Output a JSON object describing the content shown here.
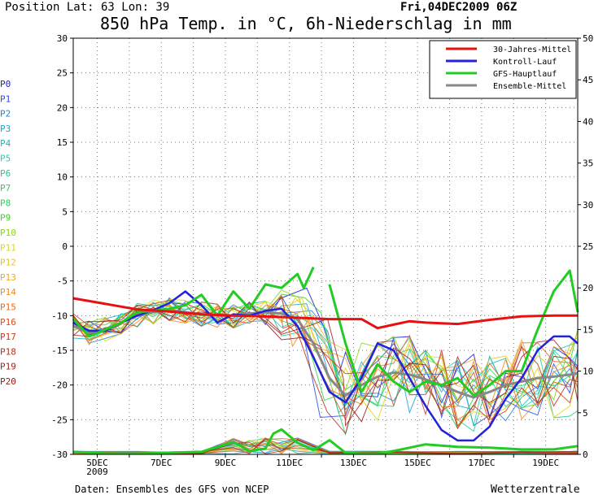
{
  "header": {
    "position": "Position   Lat: 63 Lon: 39",
    "title": "850 hPa Temp. in °C, 6h-Niederschlag in mm",
    "date": "Fri,04DEC2009 06Z"
  },
  "footer": {
    "source": "Daten: Ensembles des GFS von NCEP",
    "brand": "Wetterzentrale"
  },
  "members": [
    {
      "label": "P0",
      "color": "#1a1ae6"
    },
    {
      "label": "P1",
      "color": "#2650e6"
    },
    {
      "label": "P2",
      "color": "#1e7fe0"
    },
    {
      "label": "P3",
      "color": "#19a3d6"
    },
    {
      "label": "P4",
      "color": "#16b8c4"
    },
    {
      "label": "P5",
      "color": "#1ecfb5"
    },
    {
      "label": "P6",
      "color": "#20c995"
    },
    {
      "label": "P7",
      "color": "#1ed36d"
    },
    {
      "label": "P8",
      "color": "#22d64a"
    },
    {
      "label": "P9",
      "color": "#39d61e"
    },
    {
      "label": "P10",
      "color": "#8ad61c"
    },
    {
      "label": "P11",
      "color": "#d9d91a"
    },
    {
      "label": "P12",
      "color": "#eac41a"
    },
    {
      "label": "P13",
      "color": "#f0aa1a"
    },
    {
      "label": "P14",
      "color": "#f08a1a"
    },
    {
      "label": "P15",
      "color": "#e86d1c"
    },
    {
      "label": "P16",
      "color": "#d9501e"
    },
    {
      "label": "P17",
      "color": "#c8401e"
    },
    {
      "label": "P18",
      "color": "#b83020"
    },
    {
      "label": "P19",
      "color": "#a82222"
    },
    {
      "label": "P20",
      "color": "#981818"
    }
  ],
  "chart_data": {
    "type": "line",
    "title": "850 hPa Temp. in °C, 6h-Niederschlag in mm",
    "x_unit": "days from 04DEC2009 06Z",
    "xlim": [
      0,
      15.75
    ],
    "x_ticks": [
      {
        "x": 0.75,
        "label": "5DEC",
        "sub": "2009"
      },
      {
        "x": 2.75,
        "label": "7DEC"
      },
      {
        "x": 4.75,
        "label": "9DEC"
      },
      {
        "x": 6.75,
        "label": "11DEC"
      },
      {
        "x": 8.75,
        "label": "13DEC"
      },
      {
        "x": 10.75,
        "label": "15DEC"
      },
      {
        "x": 12.75,
        "label": "17DEC"
      },
      {
        "x": 14.75,
        "label": "19DEC"
      }
    ],
    "y_left": {
      "label": "850 hPa Temp. in °C",
      "ylim": [
        -30,
        30
      ],
      "ticks": [
        30,
        25,
        20,
        15,
        10,
        5,
        0,
        -5,
        -10,
        -15,
        -20,
        -25,
        -30
      ]
    },
    "y_right": {
      "label": "6h-Niederschlag in mm",
      "ylim": [
        0,
        50
      ],
      "ticks": [
        50,
        45,
        40,
        35,
        30,
        25,
        20,
        15,
        10,
        5,
        0
      ]
    },
    "grid": true,
    "legend_position": "top-right",
    "legend": [
      {
        "name": "30-Jahres-Mittel",
        "color": "#e81010"
      },
      {
        "name": "Kontroll-Lauf",
        "color": "#2222dd"
      },
      {
        "name": "GFS-Hauptlauf",
        "color": "#22cc22"
      },
      {
        "name": "Ensemble-Mittel",
        "color": "#888888"
      }
    ],
    "series": [
      {
        "name": "30-Jahres-Mittel",
        "color": "#e81010",
        "axis": "left",
        "width": 3,
        "x": [
          0,
          1,
          2,
          3,
          4,
          5,
          6,
          7,
          8,
          9,
          9.5,
          10,
          10.5,
          11,
          12,
          13,
          14,
          15,
          15.75
        ],
        "y": [
          -7.5,
          -8.3,
          -9.1,
          -9.4,
          -9.8,
          -10,
          -10.1,
          -10.3,
          -10.5,
          -10.5,
          -11.8,
          -11.3,
          -10.8,
          -11,
          -11.2,
          -10.6,
          -10.1,
          -10,
          -10
        ]
      },
      {
        "name": "Kontroll-Lauf",
        "color": "#2222dd",
        "axis": "left",
        "width": 2.5,
        "x": [
          0,
          0.5,
          1,
          1.5,
          2,
          2.5,
          3,
          3.5,
          4,
          4.5,
          5,
          5.5,
          6,
          6.5,
          7,
          7.5,
          8,
          8.5,
          9,
          9.5,
          10,
          10.5,
          11,
          11.5,
          12,
          12.5,
          13,
          13.5,
          14,
          14.5,
          15,
          15.5,
          15.75
        ],
        "y": [
          -11,
          -12.2,
          -12.2,
          -11,
          -10,
          -9.2,
          -8.2,
          -6.5,
          -8.5,
          -11,
          -9.8,
          -10,
          -9.3,
          -9,
          -11.5,
          -16,
          -21,
          -22.5,
          -19,
          -14,
          -15,
          -19,
          -23,
          -26.5,
          -28,
          -28,
          -26,
          -22,
          -19,
          -15,
          -13,
          -13,
          -14
        ]
      },
      {
        "name": "Ensemble-Mittel",
        "color": "#888888",
        "axis": "left",
        "width": 3,
        "x": [
          0,
          0.5,
          1,
          1.5,
          2,
          2.5,
          3,
          3.5,
          4,
          4.5,
          5,
          5.5,
          6,
          6.5,
          7,
          7.5,
          8,
          8.5,
          9,
          9.5,
          10,
          10.5,
          11,
          11.5,
          12,
          12.5,
          13,
          13.5,
          14,
          14.5,
          15,
          15.5,
          15.75
        ],
        "y": [
          -11.5,
          -12.5,
          -12,
          -11,
          -10,
          -9.5,
          -9.2,
          -9.5,
          -9.8,
          -10,
          -10,
          -9.7,
          -9.5,
          -9.7,
          -10.5,
          -14,
          -19,
          -21.5,
          -20,
          -18.8,
          -18.2,
          -18.5,
          -19.2,
          -20,
          -21,
          -21.8,
          -21,
          -20,
          -19.5,
          -19,
          -18.8,
          -18.5,
          -18.3
        ]
      },
      {
        "name": "GFS-Hauptlauf",
        "color": "#22cc22",
        "axis": "left",
        "width": 3,
        "x": [
          0,
          0.5,
          1,
          1.5,
          2,
          2.5,
          3,
          3.5,
          4,
          4.5,
          5,
          5.5,
          6,
          6.5,
          7,
          7.2,
          7.5,
          null,
          8,
          8.5,
          9,
          9.5,
          10,
          10.5,
          11,
          11.5,
          12,
          12.5,
          13,
          13.5,
          14,
          14.5,
          15,
          15.5,
          15.75
        ],
        "y": [
          -10.5,
          -13,
          -12,
          -11,
          -9.5,
          -9.3,
          -9,
          -8.5,
          -7,
          -10,
          -6.5,
          -9,
          -5.5,
          -6,
          -4,
          -6,
          -3,
          null,
          -5.5,
          -14,
          -21,
          -17,
          -19.5,
          -21,
          -19.5,
          -20,
          -19,
          -21.5,
          -20,
          -18,
          -18,
          -12,
          -6.5,
          -3.5,
          -9.5
        ]
      },
      {
        "name": "GFS-Hauptlauf-Niederschlag",
        "color": "#22cc22",
        "axis": "right",
        "width": 3,
        "x": [
          0,
          1,
          2,
          3,
          4,
          5,
          5.5,
          6,
          6.25,
          6.5,
          7,
          7.5,
          8,
          8.5,
          9,
          9.5,
          10,
          11,
          12,
          13,
          14,
          15,
          15.75
        ],
        "y": [
          0.3,
          0.1,
          0.1,
          0.2,
          0.3,
          1.5,
          0.4,
          0.7,
          2.5,
          3,
          1.4,
          0.5,
          1.7,
          0.2,
          0.1,
          0.1,
          0.4,
          1.2,
          0.9,
          0.8,
          0.6,
          0.6,
          1
        ]
      }
    ]
  }
}
